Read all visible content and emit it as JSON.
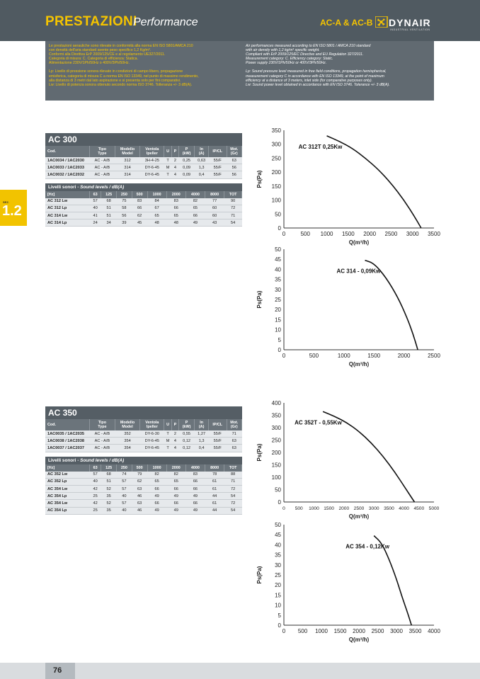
{
  "header": {
    "title": "PRESTAZIONI",
    "subtitle": "Performance",
    "models": "AC-A & AC-B",
    "brand": "DYNAIR",
    "brand_tagline": "INDUSTRIAL VENTILATION",
    "brand_color": "#f5c400"
  },
  "notes": {
    "it": [
      "Le prestazioni aerauliche sono rilevate in conformità alla norma EN ISO 5801/AMCA 210",
      "con densità dell'aria standard avente peso specifico 1,2 Kg/m³.",
      "Conformi alla Direttiva ErP 2009/125/CE e al regolamento UE327/2011.",
      "Categoria di misura: C. Categoria di efficienza: Statica.",
      "Alimentazione 230V/1Ph/50Hz o 400V/3Ph/50Hz."
    ],
    "it2": [
      "Lp: Livello di pressione sonora rilevato in condizioni di campo libero, propagazione",
      "emisferica, categoria di misura C a norma EN ISO 13349, nel punto di massimo rendimento,",
      "alla distanza di 3 metri dal lato aspirazione e si presenta solo per fini comparativi.",
      "Lw: Livello di potenza sonora ottenuto secondo norma ISO 3746. Tolleranza +/- 3 dB(A)."
    ],
    "en": [
      "Air performances measured according to EN ISO 5801 / AMCA 210 standard",
      "with air density with 1,2 kg/m³ specific weight.",
      "Compliant with ErP 2009/125/EC Directive and EU Regulation 327/2011.",
      "Measurement category: C. Efficiency category: Static.",
      "Power supply 230V/1Ph/50Hz or 400V/3Ph/50Hz."
    ],
    "en2": [
      "Lp: Sound pressure level measured in free field conditions, propagation hemispherical,",
      "measurement category C in accordance with EN ISO 13349, at the point of maximum",
      "efficiency at a distance of 3 meters, inlet side (for comparative purposes only).",
      "Lw: Sound power level obtained in accordance with EN ISO 3746. Tolerance +/- 3 dB(A)."
    ]
  },
  "sidetab": {
    "label": "SEZ.",
    "number": "1.2"
  },
  "table_headers": [
    "Cod.",
    "Tipo Type",
    "Modello Model",
    "Ventola Ipeller",
    "U",
    "P",
    "P (kW)",
    "In (A)",
    "IP/CL",
    "Mot. (Gr)"
  ],
  "table_head": {
    "cod": "Cod.",
    "tipo1": "Tipo",
    "tipo2": "Type",
    "mod1": "Modello",
    "mod2": "Model",
    "ven1": "Ventola",
    "ven2": "Ipeller",
    "u": "U",
    "p": "P",
    "pkw1": "P",
    "pkw2": "(kW)",
    "in1": "In",
    "in2": "(A)",
    "ip": "IP/CL",
    "mot1": "Mot.",
    "mot2": "(Gr)"
  },
  "sound_header": {
    "title": "Livelli sonori",
    "sep": " - ",
    "title_en": "Sound levels / dB(A)"
  },
  "sound_cols": [
    "[Hz]",
    "63",
    "125",
    "250",
    "500",
    "1000",
    "2000",
    "4000",
    "8000",
    "TOT"
  ],
  "ac300": {
    "title": "AC 300",
    "rows": [
      [
        "1AC0034 / 1AC2030",
        "AC - A/B",
        "312",
        "3H-4-25",
        "T",
        "2",
        "0,25",
        "0,63",
        "55/F",
        "63"
      ],
      [
        "1AC0033 / 1AC2033",
        "AC - A/B",
        "314",
        "DY-6-45",
        "M",
        "4",
        "0,09",
        "1,3",
        "55/F",
        "56"
      ],
      [
        "1AC0032 / 1AC2032",
        "AC - A/B",
        "314",
        "DY-6-45",
        "T",
        "4",
        "0,09",
        "0,4",
        "55/F",
        "56"
      ]
    ],
    "sound_rows": [
      [
        "AC 312 Lw",
        "57",
        "68",
        "75",
        "83",
        "84",
        "83",
        "82",
        "77",
        "90"
      ],
      [
        "AC 312 Lp",
        "40",
        "51",
        "58",
        "66",
        "67",
        "66",
        "65",
        "60",
        "72"
      ],
      [
        "AC 314 Lw",
        "41",
        "51",
        "56",
        "62",
        "65",
        "65",
        "66",
        "60",
        "71"
      ],
      [
        "AC 314 Lp",
        "24",
        "34",
        "39",
        "45",
        "48",
        "48",
        "49",
        "43",
        "54"
      ]
    ]
  },
  "ac350": {
    "title": "AC 350",
    "rows": [
      [
        "1AC0035 / 1AC2035",
        "AC - A/B",
        "352",
        "DY-6-30",
        "T",
        "2",
        "0,55",
        "1,27",
        "55/F",
        "71"
      ],
      [
        "1AC0038 / 1AC2038",
        "AC - A/B",
        "354",
        "DY-6-45",
        "M",
        "4",
        "0,12",
        "1,3",
        "55/F",
        "63"
      ],
      [
        "1AC0037 / 1AC2037",
        "AC - A/B",
        "354",
        "DY-6-45",
        "T",
        "4",
        "0,12",
        "0,4",
        "55/F",
        "63"
      ]
    ],
    "sound_rows": [
      [
        "AC 352 Lw",
        "57",
        "68",
        "74",
        "79",
        "82",
        "82",
        "83",
        "78",
        "88"
      ],
      [
        "AC 352 Lp",
        "40",
        "51",
        "57",
        "62",
        "65",
        "65",
        "66",
        "61",
        "71"
      ],
      [
        "AC 354 Lw",
        "42",
        "52",
        "57",
        "63",
        "66",
        "66",
        "66",
        "61",
        "72"
      ],
      [
        "AC 354 Lp",
        "25",
        "35",
        "40",
        "46",
        "49",
        "49",
        "49",
        "44",
        "54"
      ],
      [
        "AC 354 Lw",
        "42",
        "52",
        "57",
        "63",
        "66",
        "66",
        "66",
        "61",
        "72"
      ],
      [
        "AC 354 Lp",
        "25",
        "35",
        "40",
        "46",
        "49",
        "49",
        "49",
        "44",
        "54"
      ]
    ]
  },
  "chart_data": [
    {
      "type": "line",
      "xlabel": "Q(m³/h)",
      "ylabel": "Ps(Pa)",
      "xlim": [
        0,
        3500
      ],
      "ylim": [
        0,
        350
      ],
      "xticks": [
        0,
        500,
        1000,
        1500,
        2000,
        2500,
        3000,
        3500
      ],
      "yticks": [
        0,
        50,
        100,
        150,
        200,
        250,
        300,
        350
      ],
      "grid": false,
      "series": [
        {
          "name": "AC 312T 0,25Kw",
          "x": [
            1000,
            1300,
            1600,
            1900,
            2200,
            2500,
            2800,
            3050,
            3200
          ],
          "y": [
            330,
            310,
            285,
            250,
            210,
            160,
            100,
            40,
            0
          ]
        }
      ]
    },
    {
      "type": "line",
      "xlabel": "Q(m³/h)",
      "ylabel": "Ps(Pa)",
      "xlim": [
        0,
        2500
      ],
      "ylim": [
        0,
        50
      ],
      "xticks": [
        0,
        500,
        1000,
        1500,
        2000,
        2500
      ],
      "yticks": [
        0,
        5,
        10,
        15,
        20,
        25,
        30,
        35,
        40,
        45,
        50
      ],
      "grid": false,
      "series": [
        {
          "name": "AC 314 - 0,09Kw",
          "x": [
            1350,
            1500,
            1700,
            1900,
            2050,
            2150,
            2230
          ],
          "y": [
            44.5,
            43,
            36,
            26,
            16,
            8,
            0
          ]
        }
      ]
    },
    {
      "type": "line",
      "xlabel": "Q(m³/h)",
      "ylabel": "Ps(Pa)",
      "xlim": [
        0,
        5000
      ],
      "ylim": [
        0,
        400
      ],
      "xticks": [
        0,
        500,
        1000,
        1500,
        2000,
        2500,
        3000,
        3500,
        4000,
        4500,
        5000
      ],
      "yticks": [
        0,
        50,
        100,
        150,
        200,
        250,
        300,
        350,
        400
      ],
      "grid": false,
      "series": [
        {
          "name": "AC 352T - 0,55Kw",
          "x": [
            1300,
            1700,
            2100,
            2500,
            2900,
            3300,
            3700,
            4050,
            4350
          ],
          "y": [
            365,
            345,
            320,
            285,
            240,
            185,
            120,
            55,
            0
          ]
        }
      ]
    },
    {
      "type": "line",
      "xlabel": "Q(m³/h)",
      "ylabel": "Ps(Pa)",
      "xlim": [
        0,
        4000
      ],
      "ylim": [
        0,
        50
      ],
      "xticks": [
        0,
        500,
        1000,
        1500,
        2000,
        2500,
        3000,
        3500,
        4000
      ],
      "yticks": [
        0,
        5,
        10,
        15,
        20,
        25,
        30,
        35,
        40,
        45,
        50
      ],
      "grid": false,
      "series": [
        {
          "name": "AC 354 - 0,12Kw",
          "x": [
            2400,
            2600,
            2800,
            3000,
            3150,
            3300,
            3400
          ],
          "y": [
            44.5,
            41,
            33,
            23,
            14,
            6,
            0
          ]
        }
      ]
    }
  ],
  "footer": {
    "page": "76"
  }
}
